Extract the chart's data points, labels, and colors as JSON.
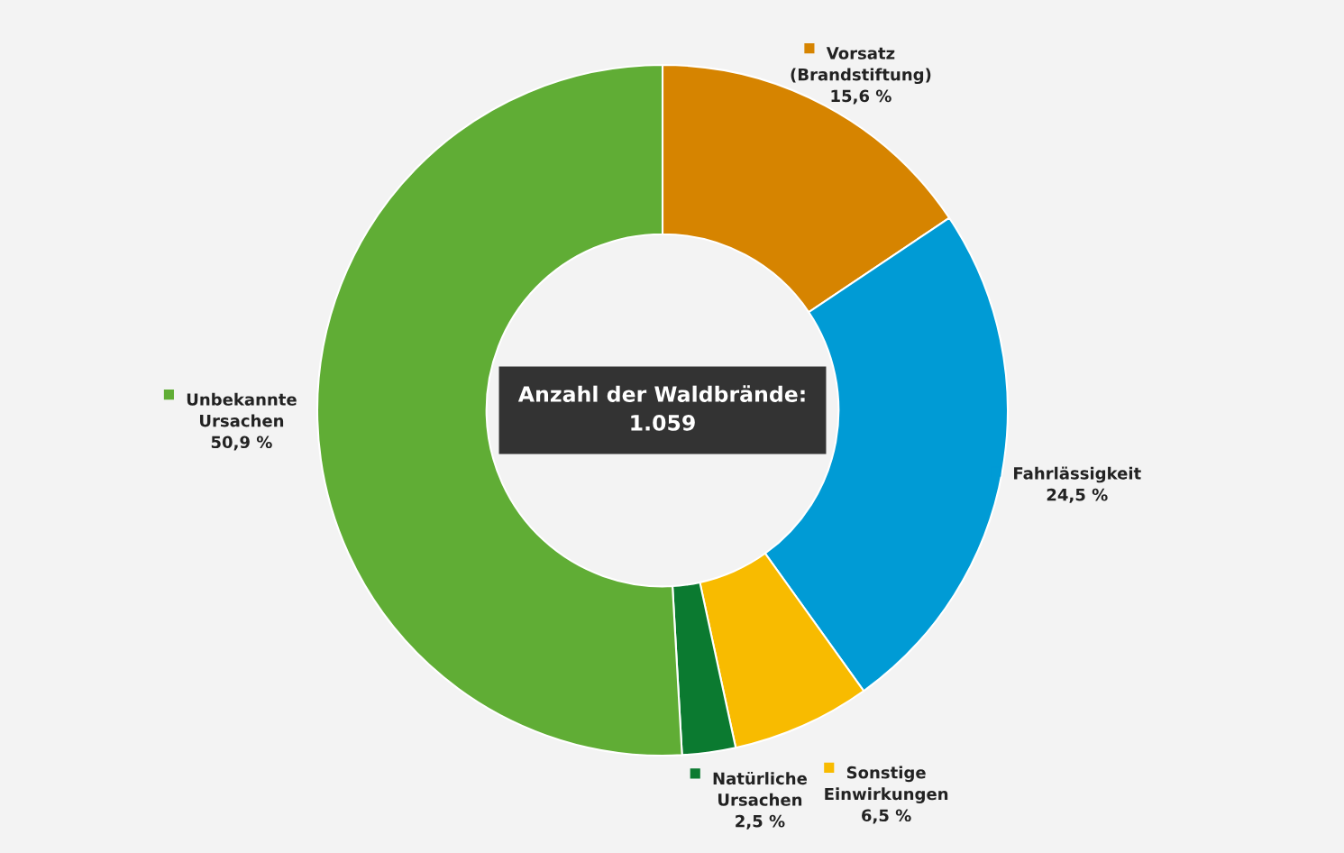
{
  "chart_data": {
    "type": "donut",
    "categories": [
      "Vorsatz\n(Brandstiftung)",
      "Fahrlässigkeit",
      "Sonstige\nEinwirkungen",
      "Natürliche\nUrsachen",
      "Unbekannte\nUrsachen"
    ],
    "values": [
      15.6,
      24.5,
      6.5,
      2.5,
      50.9
    ],
    "value_labels": [
      "15,6 %",
      "24,5 %",
      "6,5 %",
      "2,5 %",
      "50,9 %"
    ],
    "colors": [
      "#d68400",
      "#009bd5",
      "#f8bb00",
      "#0b7a30",
      "#60ad35"
    ],
    "annotations": [
      "Anzahl der Waldbrände:\n1.059"
    ],
    "legend": "bottom left"
  }
}
